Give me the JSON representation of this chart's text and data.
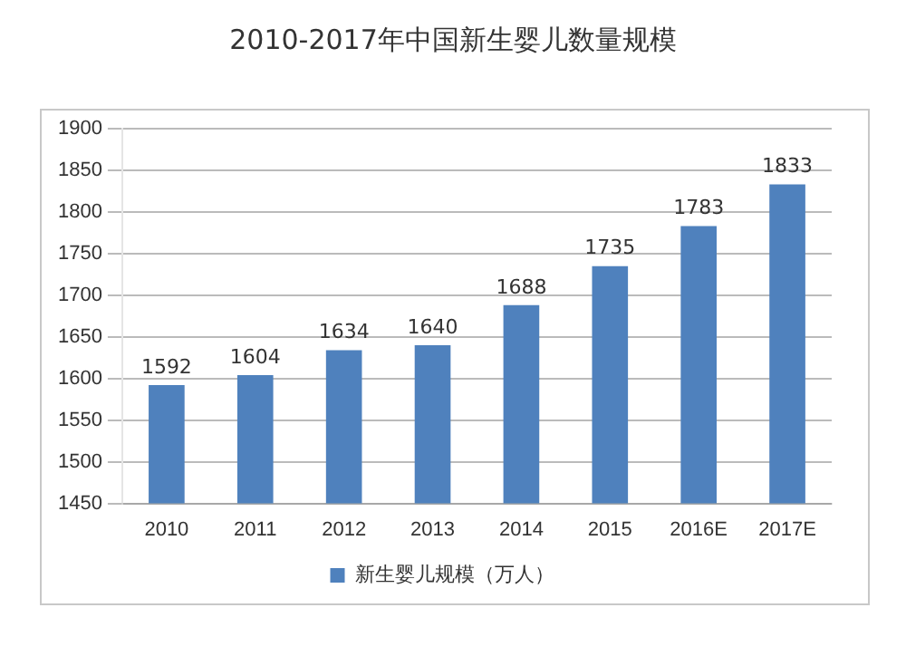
{
  "chart_data": {
    "type": "bar",
    "title": "2010-2017年中国新生婴儿数量规模",
    "categories": [
      "2010",
      "2011",
      "2012",
      "2013",
      "2014",
      "2015",
      "2016E",
      "2017E"
    ],
    "series": [
      {
        "name": "新生婴儿规模（万人）",
        "color": "#4f81bd",
        "values": [
          1592,
          1604,
          1634,
          1640,
          1688,
          1735,
          1783,
          1833
        ]
      }
    ],
    "ylim": [
      1450,
      1900
    ],
    "yticks": [
      1450,
      1500,
      1550,
      1600,
      1650,
      1700,
      1750,
      1800,
      1850,
      1900
    ],
    "grid": "y",
    "legend": "bottom",
    "data_labels": true
  }
}
